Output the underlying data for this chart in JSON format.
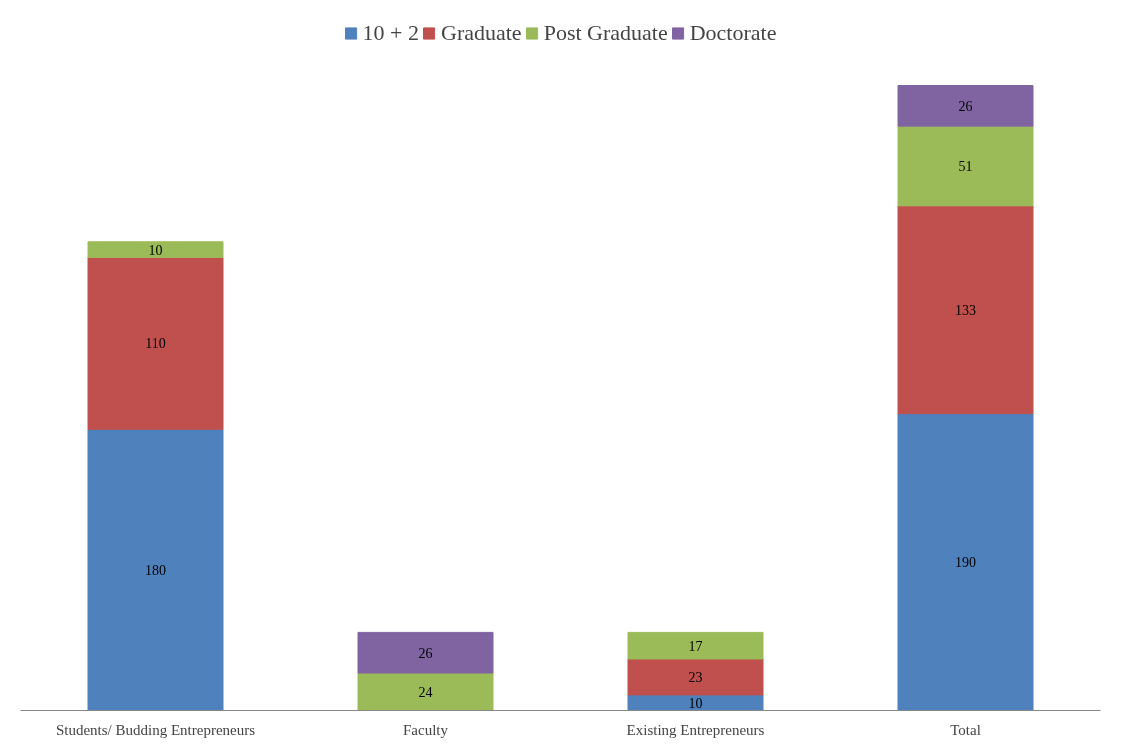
{
  "chart_data": {
    "type": "bar",
    "stacked": true,
    "data_labels": true,
    "legend": "top",
    "grid": false,
    "categories": [
      "Students/ Budding Entrepreneurs",
      "Faculty",
      "Existing Entrepreneurs",
      "Total"
    ],
    "series": [
      {
        "name": "10 + 2",
        "color": "#4f81bd",
        "values": [
          180,
          null,
          10,
          190
        ]
      },
      {
        "name": "Graduate",
        "color": "#c0504d",
        "values": [
          110,
          null,
          23,
          133
        ]
      },
      {
        "name": "Post Graduate",
        "color": "#9bbb59",
        "values": [
          10,
          24,
          17,
          51
        ]
      },
      {
        "name": "Doctorate",
        "color": "#8064a2",
        "values": [
          null,
          26,
          null,
          26
        ]
      }
    ]
  }
}
